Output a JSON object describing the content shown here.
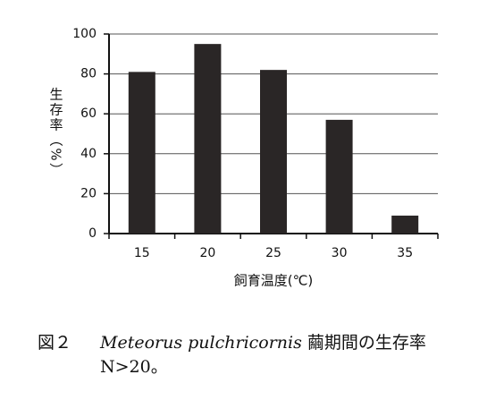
{
  "chart_data": {
    "type": "bar",
    "categories": [
      "15",
      "20",
      "25",
      "30",
      "35"
    ],
    "values": [
      81,
      95,
      82,
      57,
      9
    ],
    "color": "#2a2626",
    "ylim": [
      0,
      100
    ],
    "yticks": [
      0,
      20,
      40,
      60,
      80,
      100
    ],
    "grid": true,
    "y_label": "生存率（%）",
    "x_label": "飼育温度(℃)",
    "caption": {
      "label": "図２",
      "species": "Meteorus pulchricornis",
      "text": "繭期間の生存率",
      "note": "N>20。"
    }
  }
}
